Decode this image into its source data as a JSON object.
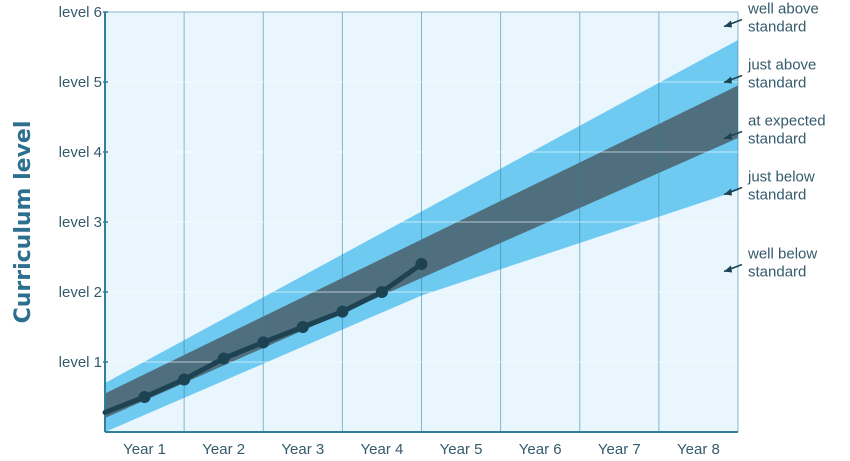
{
  "chart_data": {
    "type": "area",
    "ylabel": "Curriculum level",
    "categories": [
      "Year 1",
      "Year 2",
      "Year 3",
      "Year 4",
      "Year 5",
      "Year 6",
      "Year 7",
      "Year 8"
    ],
    "y_tick_labels": [
      "level 1",
      "level 2",
      "level 3",
      "level 4",
      "level 5",
      "level 6"
    ],
    "y_tick_values": [
      1,
      2,
      3,
      4,
      5,
      6
    ],
    "xlim": [
      0,
      8
    ],
    "ylim": [
      0,
      6
    ],
    "grid": true,
    "bands": {
      "x": [
        0,
        4,
        8
      ],
      "just_below_lower": [
        0.0,
        1.95,
        3.45
      ],
      "at_expected_lower": [
        0.2,
        2.2,
        4.2
      ],
      "at_expected_upper": [
        0.55,
        2.75,
        4.95
      ],
      "just_above_upper": [
        0.7,
        3.15,
        5.6
      ]
    },
    "band_labels": [
      {
        "text": [
          "well above",
          "standard"
        ],
        "y": 5.95
      },
      {
        "text": [
          "just above",
          "standard"
        ],
        "y": 5.15
      },
      {
        "text": [
          "at expected",
          "standard"
        ],
        "y": 4.35
      },
      {
        "text": [
          "just below",
          "standard"
        ],
        "y": 3.55
      },
      {
        "text": [
          "well below",
          "standard"
        ],
        "y": 2.45
      }
    ],
    "series": [
      {
        "x": [
          0,
          0.5,
          1,
          1.5,
          2,
          2.5,
          3,
          3.5,
          4
        ],
        "y": [
          0.28,
          0.5,
          0.75,
          1.05,
          1.28,
          1.5,
          1.72,
          2.0,
          2.4
        ]
      }
    ],
    "colors": {
      "plot_bg": "#eaf6fd",
      "light_band": "#6fcaf1",
      "dark_band": "#4f6f7f",
      "line": "#1d4352",
      "grid": "#2f7f9d",
      "axis": "#2f7f9d",
      "text": "#355a6c"
    }
  }
}
